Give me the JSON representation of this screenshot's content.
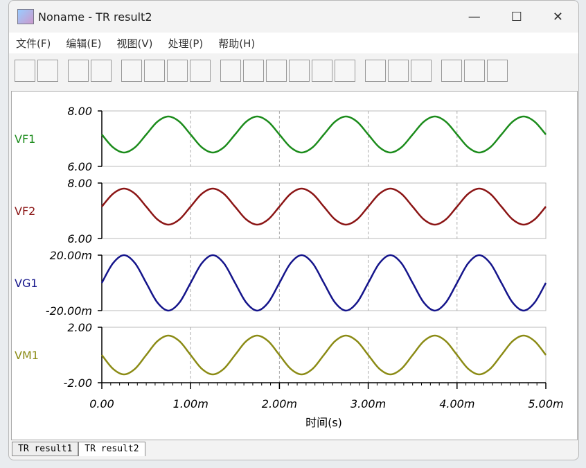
{
  "window": {
    "title": "Noname - TR result2",
    "menu": [
      "文件(F)",
      "编辑(E)",
      "视图(V)",
      "处理(P)",
      "帮助(H)"
    ],
    "tabs": [
      "TR result1",
      "TR result2"
    ]
  },
  "chart_data": {
    "type": "line",
    "xlabel": "时间(s)",
    "x": [
      0,
      0.000125,
      0.00025,
      0.000375,
      0.0005,
      0.000625,
      0.00075,
      0.000875,
      0.001,
      0.001125,
      0.00125,
      0.001375,
      0.0015,
      0.001625,
      0.00175,
      0.001875,
      0.002,
      0.002125,
      0.00225,
      0.002375,
      0.0025,
      0.002625,
      0.00275,
      0.002875,
      0.003,
      0.003125,
      0.00325,
      0.003375,
      0.0035,
      0.003625,
      0.00375,
      0.003875,
      0.004,
      0.004125,
      0.00425,
      0.004375,
      0.0045,
      0.004625,
      0.00475,
      0.004875,
      0.005
    ],
    "xlim": [
      0,
      0.005
    ],
    "xticks": [
      {
        "value": 0,
        "label": "0.00"
      },
      {
        "value": 0.001,
        "label": "1.00m"
      },
      {
        "value": 0.002,
        "label": "2.00m"
      },
      {
        "value": 0.003,
        "label": "3.00m"
      },
      {
        "value": 0.004,
        "label": "4.00m"
      },
      {
        "value": 0.005,
        "label": "5.00m"
      }
    ],
    "grid": true,
    "series": [
      {
        "name": "VF1",
        "color": "#1c8c1c",
        "ylim": [
          6,
          8
        ],
        "yticks": [
          {
            "value": 6,
            "label": "6.00"
          },
          {
            "value": 8,
            "label": "8.00"
          }
        ],
        "values": [
          7.15,
          6.69,
          6.5,
          6.69,
          7.15,
          7.61,
          7.8,
          7.61,
          7.15,
          6.69,
          6.5,
          6.69,
          7.15,
          7.61,
          7.8,
          7.61,
          7.15,
          6.69,
          6.5,
          6.69,
          7.15,
          7.61,
          7.8,
          7.61,
          7.15,
          6.69,
          6.5,
          6.69,
          7.15,
          7.61,
          7.8,
          7.61,
          7.15,
          6.69,
          6.5,
          6.69,
          7.15,
          7.61,
          7.8,
          7.61,
          7.15
        ]
      },
      {
        "name": "VF2",
        "color": "#8b1515",
        "ylim": [
          6,
          8
        ],
        "yticks": [
          {
            "value": 6,
            "label": "6.00"
          },
          {
            "value": 8,
            "label": "8.00"
          }
        ],
        "values": [
          7.15,
          7.61,
          7.8,
          7.61,
          7.15,
          6.69,
          6.5,
          6.69,
          7.15,
          7.61,
          7.8,
          7.61,
          7.15,
          6.69,
          6.5,
          6.69,
          7.15,
          7.61,
          7.8,
          7.61,
          7.15,
          6.69,
          6.5,
          6.69,
          7.15,
          7.61,
          7.8,
          7.61,
          7.15,
          6.69,
          6.5,
          6.69,
          7.15,
          7.61,
          7.8,
          7.61,
          7.15,
          6.69,
          6.5,
          6.69,
          7.15
        ]
      },
      {
        "name": "VG1",
        "color": "#15158b",
        "ylim": [
          -0.02,
          0.02
        ],
        "yticks": [
          {
            "value": -0.02,
            "label": "-20.00m"
          },
          {
            "value": 0.02,
            "label": "20.00m"
          }
        ],
        "values": [
          0,
          0.0141,
          0.02,
          0.0141,
          0,
          -0.0141,
          -0.02,
          -0.0141,
          0,
          0.0141,
          0.02,
          0.0141,
          0,
          -0.0141,
          -0.02,
          -0.0141,
          0,
          0.0141,
          0.02,
          0.0141,
          0,
          -0.0141,
          -0.02,
          -0.0141,
          0,
          0.0141,
          0.02,
          0.0141,
          0,
          -0.0141,
          -0.02,
          -0.0141,
          0,
          0.0141,
          0.02,
          0.0141,
          0,
          -0.0141,
          -0.02,
          -0.0141,
          0
        ]
      },
      {
        "name": "VM1",
        "color": "#8b8b15",
        "ylim": [
          -2,
          2
        ],
        "yticks": [
          {
            "value": -2,
            "label": "-2.00"
          },
          {
            "value": 2,
            "label": "2.00"
          }
        ],
        "values": [
          0,
          -0.99,
          -1.4,
          -0.99,
          0,
          0.99,
          1.4,
          0.99,
          0,
          -0.99,
          -1.4,
          -0.99,
          0,
          0.99,
          1.4,
          0.99,
          0,
          -0.99,
          -1.4,
          -0.99,
          0,
          0.99,
          1.4,
          0.99,
          0,
          -0.99,
          -1.4,
          -0.99,
          0,
          0.99,
          1.4,
          0.99,
          0,
          -0.99,
          -1.4,
          -0.99,
          0,
          0.99,
          1.4,
          0.99,
          0
        ]
      }
    ]
  }
}
